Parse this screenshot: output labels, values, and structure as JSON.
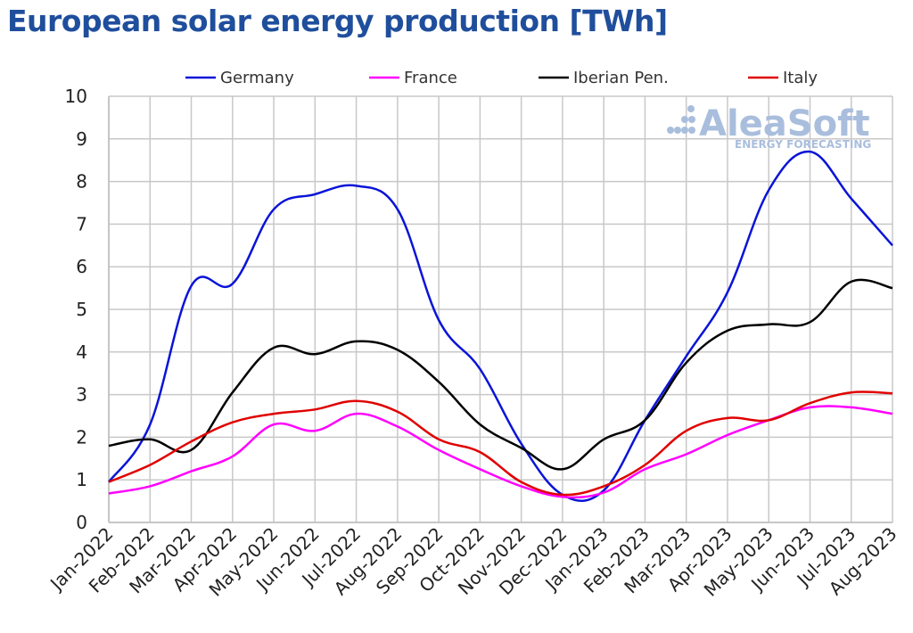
{
  "chart_data": {
    "type": "line",
    "title": "European solar energy production [TWh]",
    "categories": [
      "Jan-2022",
      "Feb-2022",
      "Mar-2022",
      "Apr-2022",
      "May-2022",
      "Jun-2022",
      "Jul-2022",
      "Aug-2022",
      "Sep-2022",
      "Oct-2022",
      "Nov-2022",
      "Dec-2022",
      "Jan-2023",
      "Feb-2023",
      "Mar-2023",
      "Apr-2023",
      "May-2023",
      "Jun-2023",
      "Jul-2023",
      "Aug-2023"
    ],
    "ylim": [
      0,
      10
    ],
    "yticks": [
      "0",
      "1",
      "2",
      "3",
      "4",
      "5",
      "6",
      "7",
      "8",
      "9",
      "10"
    ],
    "grid": true,
    "legend_position": "top",
    "series": [
      {
        "name": "Germany",
        "color": "#0a14d8",
        "values": [
          0.95,
          2.3,
          5.55,
          5.6,
          7.35,
          7.7,
          7.9,
          7.35,
          4.75,
          3.6,
          1.85,
          0.65,
          0.75,
          2.4,
          3.9,
          5.4,
          7.8,
          8.7,
          7.6,
          6.5
        ]
      },
      {
        "name": "France",
        "color": "#ff00ff",
        "values": [
          0.68,
          0.85,
          1.2,
          1.55,
          2.3,
          2.15,
          2.55,
          2.25,
          1.7,
          1.25,
          0.85,
          0.6,
          0.7,
          1.25,
          1.6,
          2.05,
          2.4,
          2.7,
          2.7,
          2.55
        ]
      },
      {
        "name": "Iberian Pen.",
        "color": "#000000",
        "values": [
          1.8,
          1.95,
          1.7,
          3.05,
          4.1,
          3.95,
          4.25,
          4.05,
          3.3,
          2.3,
          1.75,
          1.25,
          1.95,
          2.4,
          3.75,
          4.5,
          4.65,
          4.7,
          5.65,
          5.5
        ]
      },
      {
        "name": "Italy",
        "color": "#e00000",
        "values": [
          0.95,
          1.35,
          1.9,
          2.35,
          2.55,
          2.65,
          2.85,
          2.6,
          1.95,
          1.65,
          0.95,
          0.65,
          0.85,
          1.35,
          2.15,
          2.45,
          2.4,
          2.8,
          3.05,
          3.03
        ]
      }
    ]
  },
  "watermark": {
    "brand": "AleaSoft",
    "tagline": "ENERGY FORECASTING"
  }
}
